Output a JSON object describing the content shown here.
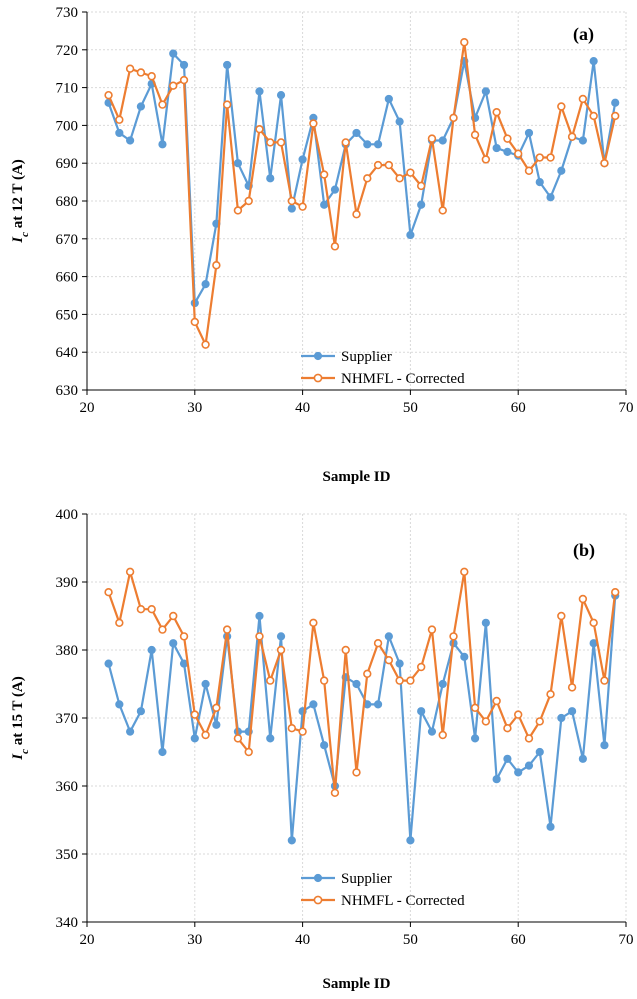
{
  "colors": {
    "supplier": "#5B9BD5",
    "nhmfl": "#ED7D31",
    "grid": "#d9d9d9",
    "axis": "#000000"
  },
  "chart_data": [
    {
      "type": "line",
      "panel_label": "(a)",
      "xlabel": "Sample ID",
      "ylabel_main": "I",
      "ylabel_sub": "c",
      "ylabel_rest": " at 12 T (A)",
      "xlim": [
        20,
        70
      ],
      "ylim": [
        630,
        730
      ],
      "xticks": [
        20,
        30,
        40,
        50,
        60,
        70
      ],
      "yticks": [
        630,
        640,
        650,
        660,
        670,
        680,
        690,
        700,
        710,
        720,
        730
      ],
      "grid": true,
      "legend_position": "bottom-center",
      "x": [
        22,
        23,
        24,
        25,
        26,
        27,
        28,
        29,
        30,
        31,
        32,
        33,
        34,
        35,
        36,
        37,
        38,
        39,
        40,
        41,
        42,
        43,
        44,
        45,
        46,
        47,
        48,
        49,
        50,
        51,
        52,
        53,
        54,
        55,
        56,
        57,
        58,
        59,
        60,
        61,
        62,
        63,
        64,
        65,
        66,
        67,
        68,
        69
      ],
      "series": [
        {
          "name": "Supplier",
          "marker": "filled",
          "values": [
            706,
            698,
            696,
            705,
            711,
            695,
            719,
            716,
            653,
            658,
            674,
            716,
            690,
            684,
            709,
            686,
            708,
            678,
            691,
            702,
            679,
            683,
            695,
            698,
            695,
            695,
            707,
            701,
            671,
            679,
            696,
            696,
            702,
            717,
            702,
            709,
            694,
            693,
            692,
            698,
            685,
            681,
            688,
            697,
            696,
            717,
            690,
            706
          ]
        },
        {
          "name": "NHMFL - Corrected",
          "marker": "open",
          "values": [
            708,
            701.5,
            715,
            714,
            713,
            705.5,
            710.5,
            712,
            648,
            642,
            663,
            705.5,
            677.5,
            680,
            699,
            695.5,
            695.5,
            680,
            678.5,
            700.5,
            687,
            668,
            695.5,
            676.5,
            686,
            689.5,
            689.5,
            686,
            687.5,
            684,
            696.5,
            677.5,
            702,
            722,
            697.5,
            691,
            703.5,
            696.5,
            692.5,
            688,
            691.5,
            691.5,
            705,
            697,
            707,
            702.5,
            690,
            702.5
          ]
        }
      ]
    },
    {
      "type": "line",
      "panel_label": "(b)",
      "xlabel": "Sample ID",
      "ylabel_main": "I",
      "ylabel_sub": "c",
      "ylabel_rest": " at 15 T (A)",
      "xlim": [
        20,
        70
      ],
      "ylim": [
        340,
        400
      ],
      "xticks": [
        20,
        30,
        40,
        50,
        60,
        70
      ],
      "yticks": [
        340,
        350,
        360,
        370,
        380,
        390,
        400
      ],
      "grid": true,
      "legend_position": "bottom-center",
      "x": [
        22,
        23,
        24,
        25,
        26,
        27,
        28,
        29,
        30,
        31,
        32,
        33,
        34,
        35,
        36,
        37,
        38,
        39,
        40,
        41,
        42,
        43,
        44,
        45,
        46,
        47,
        48,
        49,
        50,
        51,
        52,
        53,
        54,
        55,
        56,
        57,
        58,
        59,
        60,
        61,
        62,
        63,
        64,
        65,
        66,
        67,
        68,
        69
      ],
      "series": [
        {
          "name": "Supplier",
          "marker": "filled",
          "values": [
            378,
            372,
            368,
            371,
            380,
            365,
            381,
            378,
            367,
            375,
            369,
            382,
            368,
            368,
            385,
            367,
            382,
            352,
            371,
            372,
            366,
            360,
            376,
            375,
            372,
            372,
            382,
            378,
            352,
            371,
            368,
            375,
            381,
            379,
            367,
            384,
            361,
            364,
            362,
            363,
            365,
            354,
            370,
            371,
            364,
            381,
            366,
            388
          ]
        },
        {
          "name": "NHMFL - Corrected",
          "marker": "open",
          "values": [
            388.5,
            384,
            391.5,
            386,
            386,
            383,
            385,
            382,
            370.5,
            367.5,
            371.5,
            383,
            367,
            365,
            382,
            375.5,
            380,
            368.5,
            368,
            384,
            375.5,
            359,
            380,
            362,
            376.5,
            381,
            378.5,
            375.5,
            375.5,
            377.5,
            383,
            367.5,
            382,
            391.5,
            371.5,
            369.5,
            372.5,
            368.5,
            370.5,
            367,
            369.5,
            373.5,
            385,
            374.5,
            387.5,
            384,
            375.5,
            388.5
          ]
        }
      ]
    }
  ]
}
